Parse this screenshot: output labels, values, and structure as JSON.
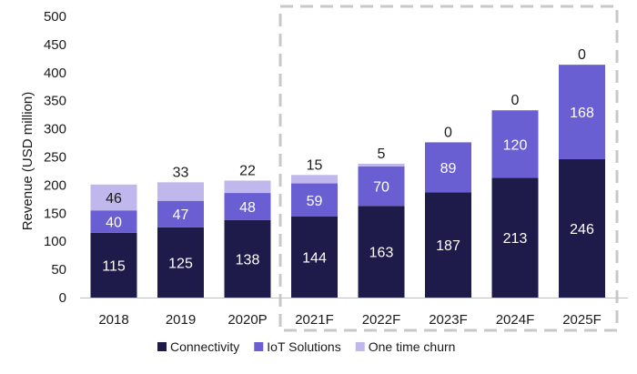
{
  "chart_data": {
    "type": "bar",
    "stacked": true,
    "categories": [
      "2018",
      "2019",
      "2020P",
      "2021F",
      "2022F",
      "2023F",
      "2024F",
      "2025F"
    ],
    "series": [
      {
        "name": "Connectivity",
        "color": "#1e1b4b",
        "values": [
          115,
          125,
          138,
          144,
          163,
          187,
          213,
          246
        ]
      },
      {
        "name": "IoT Solutions",
        "color": "#6a5fd2",
        "values": [
          40,
          47,
          48,
          59,
          70,
          89,
          120,
          168
        ]
      },
      {
        "name": "One time churn",
        "color": "#c0b8ec",
        "values": [
          46,
          33,
          22,
          15,
          5,
          0,
          0,
          0
        ]
      }
    ],
    "ylabel": "Revenue (USD million)",
    "xlabel": "",
    "ylim": [
      0,
      500
    ],
    "yticks": [
      0,
      50,
      100,
      150,
      200,
      250,
      300,
      350,
      400,
      450,
      500
    ],
    "grid": false,
    "legend_position": "bottom",
    "highlight_region": {
      "categories": [
        "2021F",
        "2022F",
        "2023F",
        "2024F",
        "2025F"
      ],
      "style": "dashed-box"
    }
  }
}
